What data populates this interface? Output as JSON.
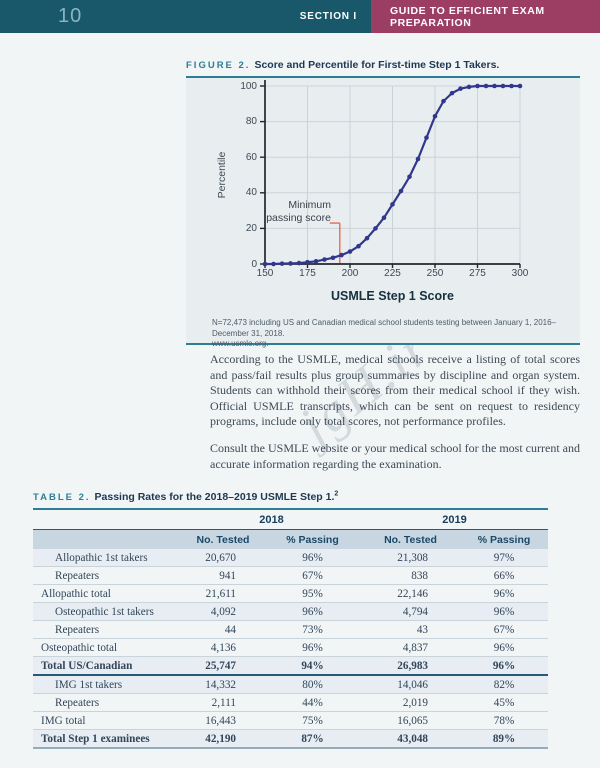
{
  "header": {
    "page_number": "10",
    "section": "SECTION I",
    "title": "GUIDE TO EFFICIENT EXAM PREPARATION"
  },
  "watermark": "jgH.ir",
  "figure": {
    "label": "FIGURE 2.",
    "title": "Score and Percentile for First-time Step 1 Takers.",
    "annotation_line1": "Minimum",
    "annotation_line2": "passing score",
    "note_line1": "N=72,473 including US and Canadian medical school students testing between January 1, 2016–December 31, 2018.",
    "note_line2": "www.usmle.org."
  },
  "chart_data": {
    "type": "line",
    "title": "Score and Percentile for First-time Step 1 Takers",
    "xlabel": "USMLE Step 1 Score",
    "ylabel": "Percentile",
    "xlim": [
      150,
      300
    ],
    "ylim": [
      0,
      100
    ],
    "xticks": [
      150,
      175,
      200,
      225,
      250,
      275,
      300
    ],
    "yticks": [
      0,
      20,
      40,
      60,
      80,
      100
    ],
    "grid": true,
    "legend": "none",
    "series": [
      {
        "x": [
          150,
          155,
          160,
          165,
          170,
          175,
          180,
          185,
          190,
          195,
          200,
          205,
          210,
          215,
          220,
          225,
          230,
          235,
          240,
          245,
          250,
          255,
          260,
          265,
          270,
          275,
          280,
          285,
          290,
          295,
          300
        ],
        "y": [
          0,
          0,
          0.2,
          0.3,
          0.5,
          1,
          1.5,
          2.5,
          3.5,
          5,
          7,
          10,
          14.5,
          20,
          26,
          33.5,
          41,
          49,
          59,
          71,
          83,
          91.5,
          96,
          98.5,
          99.5,
          100,
          100,
          100,
          100,
          100,
          100
        ]
      }
    ],
    "annotation": {
      "label": "Minimum passing score",
      "x": 194,
      "y_span": [
        0,
        23
      ]
    }
  },
  "paragraphs": [
    "According to the USMLE, medical schools receive a listing of total scores and pass/fail results plus group summaries by discipline and organ system. Students can withhold their scores from their medical school if they wish. Official USMLE transcripts, which can be sent on request to residency programs, include only total scores, not performance profiles.",
    "Consult the USMLE website or your medical school for the most current and accurate information regarding the examination."
  ],
  "table": {
    "label": "TABLE 2.",
    "title": "Passing Rates for the 2018–2019 USMLE Step 1.",
    "footnote_marker": "2",
    "year_groups": [
      {
        "year": "2018",
        "columns": [
          "No. Tested",
          "% Passing"
        ]
      },
      {
        "year": "2019",
        "columns": [
          "No. Tested",
          "% Passing"
        ]
      }
    ],
    "rows": [
      {
        "label": "Allopathic 1st takers",
        "indent": true,
        "bold": false,
        "shaded": true,
        "rule_below": false,
        "values": [
          "20,670",
          "96%",
          "21,308",
          "97%"
        ]
      },
      {
        "label": "Repeaters",
        "indent": true,
        "bold": false,
        "shaded": false,
        "rule_below": false,
        "values": [
          "941",
          "67%",
          "838",
          "66%"
        ]
      },
      {
        "label": "Allopathic total",
        "indent": false,
        "bold": false,
        "shaded": false,
        "rule_below": false,
        "values": [
          "21,611",
          "95%",
          "22,146",
          "96%"
        ]
      },
      {
        "label": "Osteopathic 1st takers",
        "indent": true,
        "bold": false,
        "shaded": true,
        "rule_below": false,
        "values": [
          "4,092",
          "96%",
          "4,794",
          "96%"
        ]
      },
      {
        "label": "Repeaters",
        "indent": true,
        "bold": false,
        "shaded": false,
        "rule_below": false,
        "values": [
          "44",
          "73%",
          "43",
          "67%"
        ]
      },
      {
        "label": "Osteopathic total",
        "indent": false,
        "bold": false,
        "shaded": false,
        "rule_below": false,
        "values": [
          "4,136",
          "96%",
          "4,837",
          "96%"
        ]
      },
      {
        "label": "Total US/Canadian",
        "indent": false,
        "bold": true,
        "shaded": true,
        "rule_below": true,
        "values": [
          "25,747",
          "94%",
          "26,983",
          "96%"
        ]
      },
      {
        "label": "IMG 1st takers",
        "indent": true,
        "bold": false,
        "shaded": true,
        "rule_below": false,
        "values": [
          "14,332",
          "80%",
          "14,046",
          "82%"
        ]
      },
      {
        "label": "Repeaters",
        "indent": true,
        "bold": false,
        "shaded": false,
        "rule_below": false,
        "values": [
          "2,111",
          "44%",
          "2,019",
          "45%"
        ]
      },
      {
        "label": "IMG total",
        "indent": false,
        "bold": false,
        "shaded": false,
        "rule_below": false,
        "values": [
          "16,443",
          "75%",
          "16,065",
          "78%"
        ]
      },
      {
        "label": "Total Step 1 examinees",
        "indent": false,
        "bold": true,
        "shaded": true,
        "rule_below": false,
        "values": [
          "42,190",
          "87%",
          "43,048",
          "89%"
        ]
      }
    ]
  },
  "colors": {
    "header_teal": "#19586b",
    "header_maroon": "#9c3e63",
    "accent_teal": "#2d7e94",
    "navy": "#1b4868",
    "curve_indigo": "#31378d",
    "annotation_orange": "#eb6a4c",
    "band_bg": "#c7d6e1",
    "panel_bg": "#e8edf0",
    "page_bg": "#f2f5f6"
  }
}
